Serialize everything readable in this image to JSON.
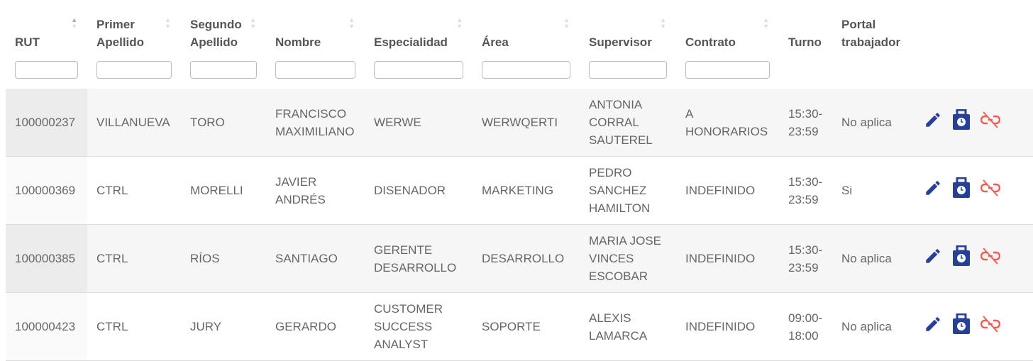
{
  "columns": [
    {
      "label": "RUT",
      "sortable": true,
      "active": true
    },
    {
      "label": "Primer Apellido",
      "sortable": true
    },
    {
      "label": "Segundo Apellido",
      "sortable": true
    },
    {
      "label": "Nombre",
      "sortable": true
    },
    {
      "label": "Especialidad",
      "sortable": true
    },
    {
      "label": "Área",
      "sortable": true
    },
    {
      "label": "Supervisor",
      "sortable": true
    },
    {
      "label": "Contrato",
      "sortable": true
    },
    {
      "label": "Turno",
      "sortable": false
    },
    {
      "label": "Portal trabajador",
      "sortable": false
    }
  ],
  "filters": [
    "",
    "",
    "",
    "",
    "",
    "",
    "",
    ""
  ],
  "rows": [
    {
      "rut": "100000237",
      "primer": "VILLANUEVA",
      "segundo": "TORO",
      "nombre": "FRANCISCO MAXIMILIANO",
      "especialidad": "WERWE",
      "area": "WERWQERTI",
      "supervisor": "ANTONIA CORRAL SAUTEREL",
      "contrato": "A HONORARIOS",
      "turno": "15:30-23:59",
      "portal": "No aplica"
    },
    {
      "rut": "100000369",
      "primer": "CTRL",
      "segundo": "MORELLI",
      "nombre": "JAVIER ANDRÉS",
      "especialidad": "DISENADOR",
      "area": "MARKETING",
      "supervisor": "PEDRO SANCHEZ HAMILTON",
      "contrato": "INDEFINIDO",
      "turno": "15:30-23:59",
      "portal": "Si"
    },
    {
      "rut": "100000385",
      "primer": "CTRL",
      "segundo": "RÍOS",
      "nombre": "SANTIAGO",
      "especialidad": "GERENTE DESARROLLO",
      "area": "DESARROLLO",
      "supervisor": "MARIA JOSE VINCES ESCOBAR",
      "contrato": "INDEFINIDO",
      "turno": "15:30-23:59",
      "portal": "No aplica"
    },
    {
      "rut": "100000423",
      "primer": "CTRL",
      "segundo": "JURY",
      "nombre": "GERARDO",
      "especialidad": "CUSTOMER SUCCESS ANALYST",
      "area": "SOPORTE",
      "supervisor": "ALEXIS LAMARCA",
      "contrato": "INDEFINIDO",
      "turno": "09:00-18:00",
      "portal": "No aplica"
    }
  ],
  "actions": [
    {
      "icon": "pencil-icon",
      "color": "#263f9b"
    },
    {
      "icon": "clock-bag-icon",
      "color": "#263f9b"
    },
    {
      "icon": "unlink-icon",
      "color": "#f25c54"
    }
  ]
}
